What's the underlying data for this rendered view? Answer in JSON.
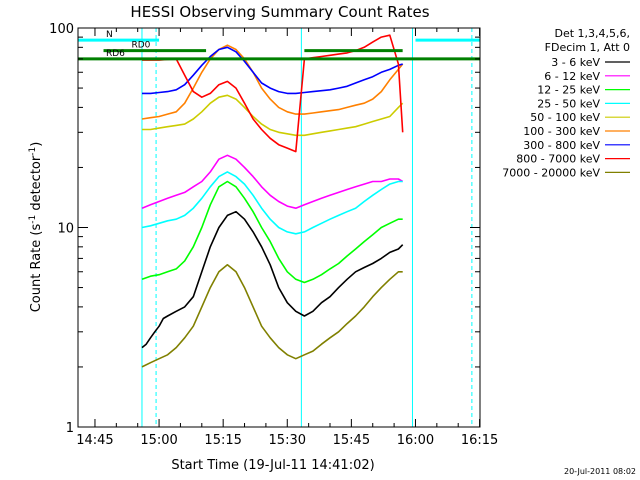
{
  "chart_data": {
    "type": "line",
    "title": "HESSI Observing Summary Count Rates",
    "xlabel": "Start Time (19-Jul-11 14:41:02)",
    "ylabel_parts": [
      "Count Rate (s",
      "-1",
      " detector",
      "-1",
      ")"
    ],
    "yscale": "log",
    "xlim_minutes": [
      41.03,
      135.1
    ],
    "ylim": [
      1,
      100
    ],
    "x_ticks": [
      {
        "min": 45,
        "label": "14:45"
      },
      {
        "min": 60,
        "label": "15:00"
      },
      {
        "min": 75,
        "label": "15:15"
      },
      {
        "min": 90,
        "label": "15:30"
      },
      {
        "min": 105,
        "label": "15:45"
      },
      {
        "min": 120,
        "label": "16:00"
      },
      {
        "min": 135,
        "label": "16:15"
      }
    ],
    "y_ticks": [
      {
        "value": 1,
        "label": "1"
      },
      {
        "value": 10,
        "label": "10"
      },
      {
        "value": 100,
        "label": "100"
      }
    ],
    "legend_header": [
      "Det 1,3,4,5,6,",
      "FDecim 1, Att 0"
    ],
    "series": [
      {
        "name": "3 - 6 keV",
        "color": "#000000",
        "x": [
          56,
          57,
          58,
          59,
          60,
          61,
          62,
          64,
          66,
          68,
          70,
          72,
          74,
          76,
          78,
          80,
          82,
          84,
          86,
          88,
          90,
          92,
          94,
          96,
          98,
          100,
          102,
          104,
          106,
          108,
          110,
          112,
          114,
          116,
          117
        ],
        "y": [
          2.5,
          2.6,
          2.8,
          3.0,
          3.2,
          3.5,
          3.6,
          3.8,
          4.0,
          4.5,
          6.0,
          8.0,
          10.0,
          11.5,
          12.0,
          11.0,
          9.5,
          8.0,
          6.5,
          5.0,
          4.2,
          3.8,
          3.6,
          3.8,
          4.2,
          4.5,
          5.0,
          5.5,
          6.0,
          6.3,
          6.6,
          7.0,
          7.5,
          7.8,
          8.2
        ]
      },
      {
        "name": "6 - 12 keV",
        "color": "#ff00ff",
        "x": [
          56,
          58,
          60,
          62,
          64,
          66,
          68,
          70,
          72,
          74,
          76,
          78,
          80,
          82,
          84,
          86,
          88,
          90,
          92,
          94,
          96,
          98,
          100,
          102,
          104,
          106,
          108,
          110,
          112,
          114,
          116,
          117
        ],
        "y": [
          12.5,
          13,
          13.5,
          14,
          14.5,
          15,
          16,
          17,
          19,
          22,
          23,
          22,
          20,
          18,
          16,
          14.5,
          13.5,
          12.8,
          12.5,
          13,
          13.5,
          14,
          14.5,
          15,
          15.5,
          16,
          16.5,
          17,
          17,
          17.5,
          17.5,
          17
        ]
      },
      {
        "name": "12 - 25 keV",
        "color": "#00ff00",
        "x": [
          56,
          58,
          60,
          62,
          64,
          66,
          68,
          70,
          72,
          74,
          76,
          78,
          80,
          82,
          84,
          86,
          88,
          90,
          92,
          94,
          96,
          98,
          100,
          102,
          104,
          106,
          108,
          110,
          112,
          114,
          116,
          117
        ],
        "y": [
          5.5,
          5.7,
          5.8,
          6.0,
          6.2,
          6.8,
          8.0,
          10,
          13,
          16,
          17,
          16,
          14,
          12,
          10,
          8.5,
          7,
          6,
          5.5,
          5.3,
          5.5,
          5.8,
          6.2,
          6.6,
          7.2,
          7.8,
          8.5,
          9.2,
          10,
          10.5,
          11,
          11
        ]
      },
      {
        "name": "25 - 50 keV",
        "color": "#00ffff",
        "x": [
          56,
          58,
          60,
          62,
          64,
          66,
          68,
          70,
          72,
          74,
          76,
          78,
          80,
          82,
          84,
          86,
          88,
          90,
          92,
          94,
          96,
          98,
          100,
          102,
          104,
          106,
          108,
          110,
          112,
          114,
          116,
          117
        ],
        "y": [
          10,
          10.2,
          10.5,
          10.8,
          11,
          11.5,
          12.5,
          14,
          16,
          18,
          19,
          18,
          16.5,
          14.5,
          12.5,
          11,
          10,
          9.5,
          9.3,
          9.5,
          10,
          10.5,
          11,
          11.5,
          12,
          12.5,
          13.5,
          14.5,
          15.5,
          16.5,
          17,
          17
        ]
      },
      {
        "name": "50 - 100 keV",
        "color": "#cccc00",
        "x": [
          56,
          58,
          60,
          62,
          64,
          66,
          68,
          70,
          72,
          74,
          76,
          78,
          80,
          82,
          84,
          86,
          88,
          90,
          92,
          94,
          96,
          98,
          100,
          102,
          104,
          106,
          108,
          110,
          112,
          114,
          116,
          117
        ],
        "y": [
          31,
          31,
          31.5,
          32,
          32.5,
          33,
          35,
          38,
          42,
          45,
          46,
          44,
          40,
          36,
          33,
          31,
          30,
          29.5,
          29,
          29,
          29.5,
          30,
          30.5,
          31,
          31.5,
          32,
          33,
          34,
          35,
          36,
          40,
          42
        ]
      },
      {
        "name": "100 - 300 keV",
        "color": "#ff8000",
        "x": [
          56,
          58,
          60,
          62,
          64,
          66,
          68,
          70,
          72,
          74,
          76,
          78,
          80,
          82,
          84,
          86,
          88,
          90,
          92,
          94,
          96,
          98,
          100,
          102,
          104,
          106,
          108,
          110,
          112,
          114,
          116,
          117
        ],
        "y": [
          35,
          35.5,
          36,
          37,
          38,
          42,
          50,
          60,
          70,
          78,
          82,
          78,
          70,
          60,
          50,
          44,
          40,
          38,
          37,
          37,
          37.5,
          38,
          38.5,
          39,
          40,
          41,
          42,
          44,
          48,
          55,
          62,
          66
        ]
      },
      {
        "name": "300 - 800 keV",
        "color": "#0000ff",
        "x": [
          56,
          58,
          60,
          62,
          64,
          66,
          68,
          70,
          72,
          74,
          76,
          78,
          80,
          82,
          84,
          86,
          88,
          90,
          92,
          94,
          96,
          98,
          100,
          102,
          104,
          106,
          108,
          110,
          112,
          114,
          116,
          117
        ],
        "y": [
          47,
          47,
          47.5,
          48,
          49,
          52,
          58,
          65,
          72,
          78,
          80,
          76,
          68,
          60,
          53,
          50,
          48,
          47,
          47,
          47.5,
          48,
          48.5,
          49,
          50,
          51,
          53,
          55,
          57,
          60,
          62,
          65,
          66
        ]
      },
      {
        "name": "800 - 7000 keV",
        "color": "#ff0000",
        "x": [
          56,
          58,
          60,
          62,
          64,
          66,
          68,
          70,
          72,
          74,
          76,
          78,
          80,
          82,
          84,
          86,
          88,
          90,
          92,
          94,
          96,
          98,
          100,
          102,
          104,
          106,
          108,
          110,
          112,
          114,
          116,
          117
        ],
        "y": [
          69,
          69,
          69,
          69.5,
          70,
          58,
          48,
          45,
          47,
          52,
          54,
          50,
          42,
          35,
          31,
          28,
          26,
          25,
          24,
          70,
          71,
          72,
          73,
          74,
          75,
          77,
          80,
          85,
          90,
          92,
          66,
          30
        ]
      },
      {
        "name": "7000 - 20000 keV",
        "color": "#808000",
        "x": [
          56,
          58,
          60,
          62,
          64,
          66,
          68,
          70,
          72,
          74,
          76,
          78,
          80,
          82,
          84,
          86,
          88,
          90,
          92,
          94,
          96,
          98,
          100,
          102,
          104,
          106,
          108,
          110,
          112,
          114,
          116,
          117
        ],
        "y": [
          2.0,
          2.1,
          2.2,
          2.3,
          2.5,
          2.8,
          3.2,
          4,
          5,
          6,
          6.5,
          6,
          5,
          4,
          3.2,
          2.8,
          2.5,
          2.3,
          2.2,
          2.3,
          2.4,
          2.6,
          2.8,
          3.0,
          3.3,
          3.6,
          4,
          4.5,
          5,
          5.5,
          6,
          6
        ]
      }
    ],
    "markers": [
      {
        "label": "N",
        "y": 87,
        "x0": 38,
        "x1": 60,
        "color": "#00ffff"
      },
      {
        "label": "",
        "y": 87,
        "x0": 120,
        "x1": 137,
        "color": "#00ffff"
      },
      {
        "label": "RD0",
        "y": 77,
        "x0": 47,
        "x1": 71,
        "color": "#008000"
      },
      {
        "label": "",
        "y": 77,
        "x0": 94,
        "x1": 117,
        "color": "#008000"
      },
      {
        "label": "RD6",
        "y": 70,
        "x0": 38,
        "x1": 137,
        "color": "#008000"
      }
    ],
    "vlines": [
      {
        "x": 56,
        "color": "#00ffff",
        "style": "solid"
      },
      {
        "x": 59.3,
        "color": "#00ffff",
        "style": "dashed"
      },
      {
        "x": 93.3,
        "color": "#00ffff",
        "style": "solid"
      },
      {
        "x": 119.3,
        "color": "#00ffff",
        "style": "solid"
      },
      {
        "x": 133.2,
        "color": "#00ffff",
        "style": "dashed"
      }
    ],
    "grid": false,
    "legend_position": "right"
  },
  "footer_timestamp": "20-Jul-2011 08:02"
}
